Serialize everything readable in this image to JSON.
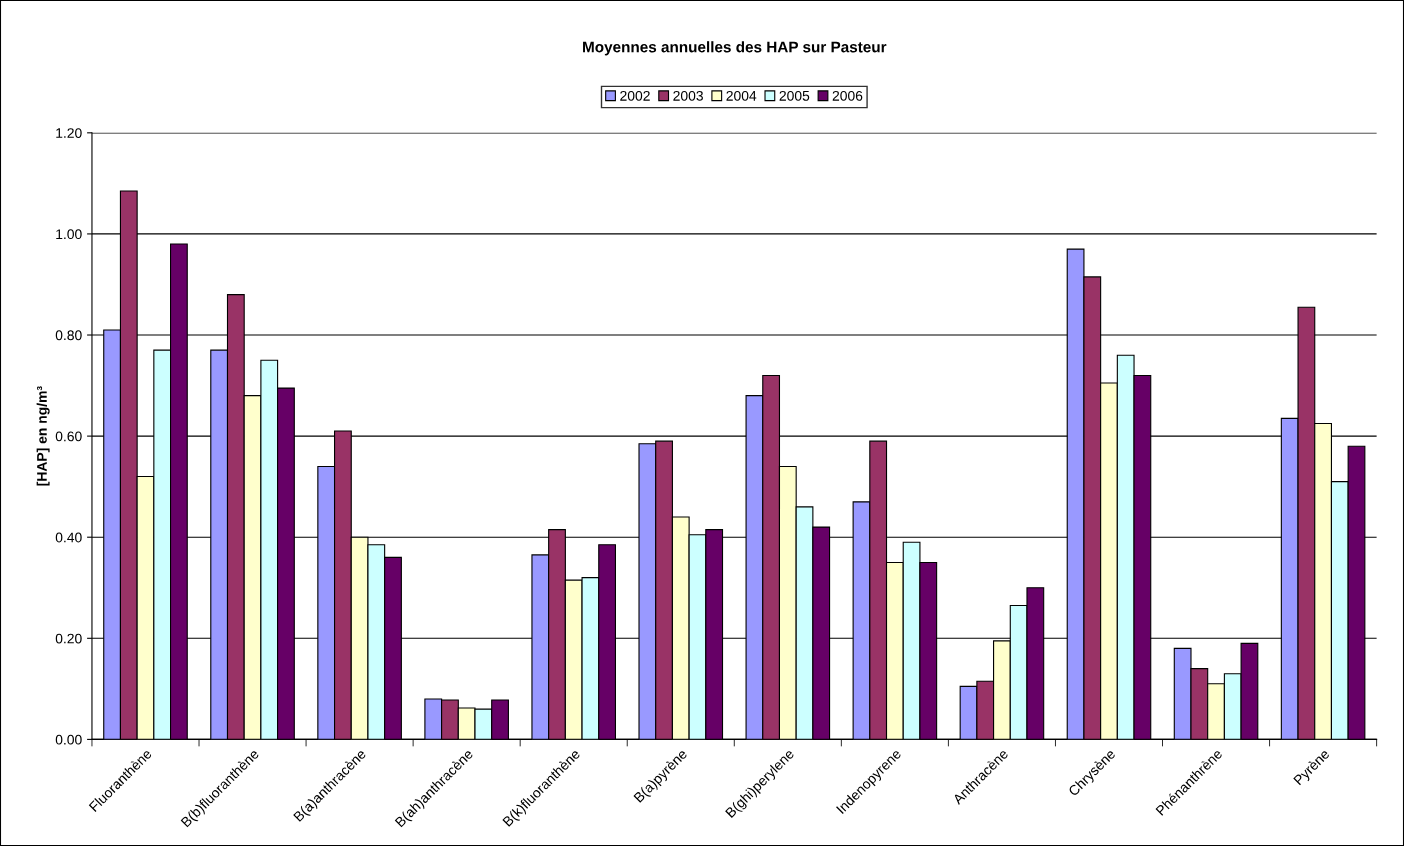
{
  "chart_data": {
    "type": "bar",
    "title": "Moyennes annuelles des HAP sur Pasteur",
    "ylabel": "[HAP] en ng/m³",
    "categories": [
      "Fluoranthène",
      "B(b)fluoranthène",
      "B(a)anthracène",
      "B(ah)anthracène",
      "B(k)fluoranthène",
      "B(a)pyrène",
      "B(ghi)perylene",
      "Indenopyrene",
      "Anthracène",
      "Chrysène",
      "Phénanthrène",
      "Pyrène"
    ],
    "series": [
      {
        "name": "2002",
        "color": "#9999ff",
        "values": [
          0.81,
          0.77,
          0.54,
          0.08,
          0.365,
          0.585,
          0.68,
          0.47,
          0.105,
          0.97,
          0.18,
          0.635
        ]
      },
      {
        "name": "2003",
        "color": "#993366",
        "values": [
          1.085,
          0.88,
          0.61,
          0.078,
          0.415,
          0.59,
          0.72,
          0.59,
          0.115,
          0.915,
          0.14,
          0.855
        ]
      },
      {
        "name": "2004",
        "color": "#ffffcc",
        "values": [
          0.52,
          0.68,
          0.4,
          0.062,
          0.315,
          0.44,
          0.54,
          0.35,
          0.195,
          0.705,
          0.11,
          0.625
        ]
      },
      {
        "name": "2005",
        "color": "#ccffff",
        "values": [
          0.77,
          0.75,
          0.385,
          0.06,
          0.32,
          0.405,
          0.46,
          0.39,
          0.265,
          0.76,
          0.13,
          0.51
        ]
      },
      {
        "name": "2006",
        "color": "#660066",
        "values": [
          0.98,
          0.695,
          0.36,
          0.078,
          0.385,
          0.415,
          0.42,
          0.35,
          0.3,
          0.72,
          0.19,
          0.58
        ]
      }
    ],
    "ylim": [
      0,
      1.2
    ],
    "yticks": [
      {
        "value": 0,
        "label": "0.00"
      },
      {
        "value": 0.2,
        "label": "0.20"
      },
      {
        "value": 0.4,
        "label": "0.40"
      },
      {
        "value": 0.6,
        "label": "0.60"
      },
      {
        "value": 0.8,
        "label": "0.80"
      },
      {
        "value": 1.0,
        "label": "1.00"
      },
      {
        "value": 1.2,
        "label": "1.20"
      }
    ],
    "grid": "y",
    "legend": "top"
  }
}
